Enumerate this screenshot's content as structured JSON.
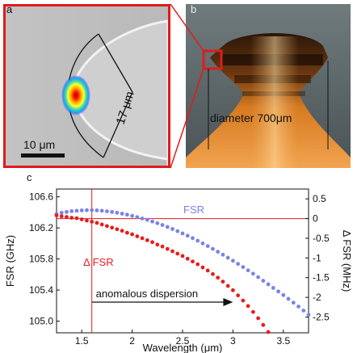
{
  "figure": {
    "panel_a": {
      "letter": "a",
      "scale_bar_label": "10 μm",
      "dimension_label": "17 μm",
      "colors": {
        "frame": "#e01b1b",
        "mode_core": "#ff1a00",
        "mode_edge": "#1f2cff"
      }
    },
    "panel_b": {
      "letter": "b",
      "diameter_label": "diameter 700μm",
      "colors": {
        "highlight_box": "#e01b1b",
        "resonator": "#f08a2a"
      }
    },
    "panel_c": {
      "letter": "c"
    }
  },
  "chart_data": {
    "type": "scatter",
    "xlabel": "Wavelength (μm)",
    "ylabel": "FSR (GHz)",
    "y2label": "Δ FSR (MHz)",
    "xlim": [
      1.25,
      3.75
    ],
    "ylim": [
      104.85,
      106.7
    ],
    "y2lim": [
      -2.9,
      0.75
    ],
    "xticks": [
      "1.5",
      "2",
      "2.5",
      "3",
      "3.5"
    ],
    "yticks": [
      "106.6",
      "106.2",
      "105.8",
      "105.4",
      "105.0"
    ],
    "y2ticks": [
      "0.5",
      "0",
      "-0.5",
      "-1",
      "-1.5",
      "-2",
      "-2.5"
    ],
    "grid": false,
    "reference_lines": {
      "vertical_x": 1.6,
      "horizontal_y2": 0
    },
    "annotations": [
      {
        "text": "anomalous dispersion",
        "arrow_from": 1.6,
        "arrow_to": 3.0
      }
    ],
    "series": [
      {
        "name": "FSR",
        "axis": "left",
        "color": "#7b83e6",
        "x": [
          1.25,
          1.3,
          1.35,
          1.4,
          1.45,
          1.5,
          1.55,
          1.6,
          1.65,
          1.7,
          1.75,
          1.8,
          1.85,
          1.9,
          1.95,
          2.0,
          2.05,
          2.1,
          2.15,
          2.2,
          2.25,
          2.3,
          2.35,
          2.4,
          2.45,
          2.5,
          2.55,
          2.6,
          2.65,
          2.7,
          2.75,
          2.8,
          2.85,
          2.9,
          2.95,
          3.0,
          3.05,
          3.1,
          3.15,
          3.2,
          3.25,
          3.3,
          3.35,
          3.4,
          3.45,
          3.5,
          3.55,
          3.6,
          3.65,
          3.7,
          3.75
        ],
        "values": [
          106.38,
          106.395,
          106.405,
          106.415,
          106.42,
          106.425,
          106.428,
          106.428,
          106.425,
          106.42,
          106.413,
          106.405,
          106.395,
          106.383,
          106.37,
          106.355,
          106.339,
          106.321,
          106.303,
          106.282,
          106.26,
          106.237,
          106.212,
          106.186,
          106.158,
          106.129,
          106.099,
          106.068,
          106.035,
          106.0,
          105.966,
          105.93,
          105.893,
          105.855,
          105.816,
          105.777,
          105.737,
          105.696,
          105.654,
          105.611,
          105.566,
          105.52,
          105.474,
          105.428,
          105.382,
          105.335,
          105.287,
          105.238,
          105.188,
          105.136,
          105.082
        ]
      },
      {
        "name": "Δ FSR",
        "axis": "right",
        "color": "#e81c1c",
        "x": [
          1.25,
          1.3,
          1.35,
          1.4,
          1.45,
          1.5,
          1.55,
          1.6,
          1.65,
          1.7,
          1.75,
          1.8,
          1.85,
          1.9,
          1.95,
          2.0,
          2.05,
          2.1,
          2.15,
          2.2,
          2.25,
          2.3,
          2.35,
          2.4,
          2.45,
          2.5,
          2.55,
          2.6,
          2.65,
          2.7,
          2.75,
          2.8,
          2.85,
          2.9,
          2.95,
          3.0,
          3.05,
          3.1,
          3.15,
          3.2,
          3.25,
          3.3,
          3.35
        ],
        "values": [
          0.08,
          0.06,
          0.04,
          0.02,
          0.01,
          -0.02,
          -0.05,
          -0.08,
          -0.11,
          -0.15,
          -0.19,
          -0.23,
          -0.27,
          -0.31,
          -0.36,
          -0.4,
          -0.45,
          -0.5,
          -0.55,
          -0.6,
          -0.66,
          -0.71,
          -0.77,
          -0.83,
          -0.89,
          -0.95,
          -1.02,
          -1.09,
          -1.16,
          -1.24,
          -1.32,
          -1.41,
          -1.5,
          -1.6,
          -1.71,
          -1.82,
          -1.95,
          -2.08,
          -2.22,
          -2.37,
          -2.53,
          -2.7,
          -2.88
        ]
      }
    ]
  }
}
